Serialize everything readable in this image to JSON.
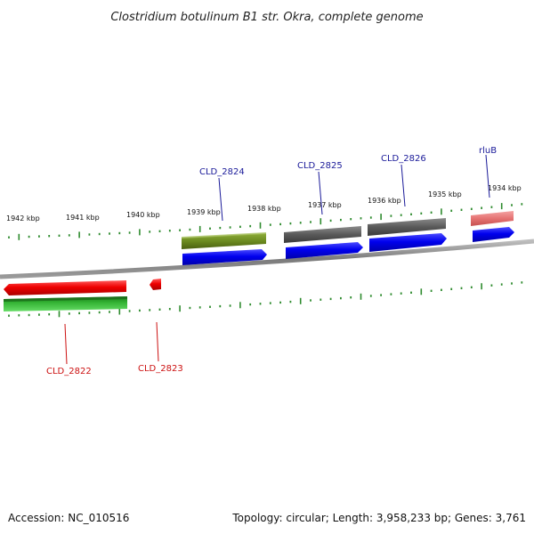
{
  "title": "Clostridium botulinum B1 str. Okra, complete genome",
  "footer": {
    "accession": "Accession: NC_010516",
    "summary": "Topology: circular; Length: 3,958,233 bp; Genes: 3,761"
  },
  "colors": {
    "backbone": "#8a8a8a",
    "tick": "#2e8b2e",
    "forward_gene": "#0000dd",
    "reverse_gene": "#ee0000",
    "olive_feature": "#6b8a1f",
    "gray_feature": "#5a5a5a",
    "pink_feature": "#e57373",
    "green_feature": "#33b333",
    "forward_label": "#1a1a99",
    "reverse_label": "#cc1111"
  },
  "tick_labels": [
    "1942 kbp",
    "1941 kbp",
    "1940 kbp",
    "1939 kbp",
    "1938 kbp",
    "1937 kbp",
    "1936 kbp",
    "1935 kbp",
    "1934 kbp"
  ],
  "genes": [
    {
      "label": "CLD_2824",
      "strand": "forward"
    },
    {
      "label": "CLD_2825",
      "strand": "forward"
    },
    {
      "label": "CLD_2826",
      "strand": "forward"
    },
    {
      "label": "rluB",
      "strand": "forward"
    },
    {
      "label": "CLD_2822",
      "strand": "reverse"
    },
    {
      "label": "CLD_2823",
      "strand": "reverse"
    }
  ]
}
